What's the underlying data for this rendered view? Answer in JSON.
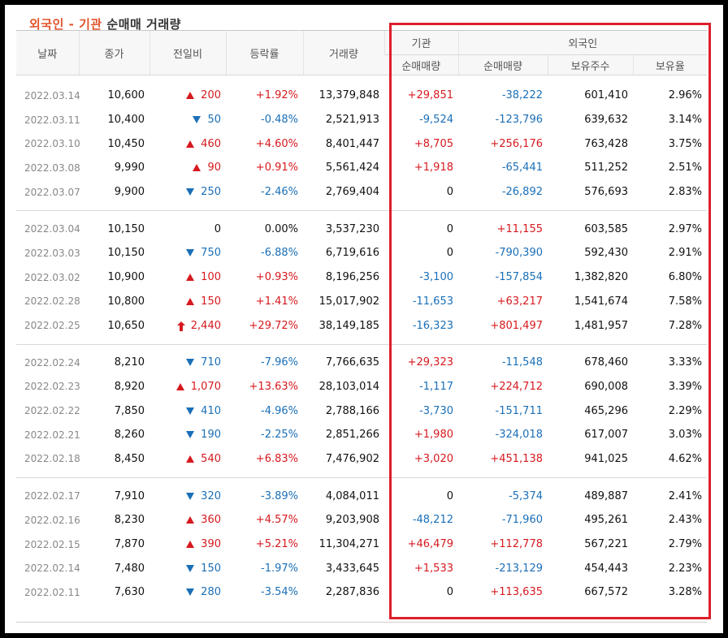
{
  "title": {
    "part1": "외국인 - 기관",
    "part2": "순매매 거래량"
  },
  "headers": {
    "date": "날짜",
    "close": "종가",
    "change": "전일비",
    "rate": "등락률",
    "volume": "거래량",
    "inst": "기관",
    "foreign": "외국인",
    "inst_net": "순매매량",
    "foreign_net": "순매매량",
    "foreign_hold": "보유주수",
    "foreign_ratio": "보유율"
  },
  "rows": [
    {
      "date": "2022.03.14",
      "close": "10,600",
      "dir": "up",
      "change": "200",
      "rate": "+1.92%",
      "volume": "13,379,848",
      "inst": "+29,851",
      "foreign": "-38,222",
      "hold": "601,410",
      "ratio": "2.96%"
    },
    {
      "date": "2022.03.11",
      "close": "10,400",
      "dir": "down",
      "change": "50",
      "rate": "-0.48%",
      "volume": "2,521,913",
      "inst": "-9,524",
      "foreign": "-123,796",
      "hold": "639,632",
      "ratio": "3.14%"
    },
    {
      "date": "2022.03.10",
      "close": "10,450",
      "dir": "up",
      "change": "460",
      "rate": "+4.60%",
      "volume": "8,401,447",
      "inst": "+8,705",
      "foreign": "+256,176",
      "hold": "763,428",
      "ratio": "3.75%"
    },
    {
      "date": "2022.03.08",
      "close": "9,990",
      "dir": "up",
      "change": "90",
      "rate": "+0.91%",
      "volume": "5,561,424",
      "inst": "+1,918",
      "foreign": "-65,441",
      "hold": "511,252",
      "ratio": "2.51%"
    },
    {
      "date": "2022.03.07",
      "close": "9,900",
      "dir": "down",
      "change": "250",
      "rate": "-2.46%",
      "volume": "2,769,404",
      "inst": "0",
      "foreign": "-26,892",
      "hold": "576,693",
      "ratio": "2.83%"
    },
    {
      "date": "2022.03.04",
      "close": "10,150",
      "dir": "flat",
      "change": "0",
      "rate": "0.00%",
      "volume": "3,537,230",
      "inst": "0",
      "foreign": "+11,155",
      "hold": "603,585",
      "ratio": "2.97%"
    },
    {
      "date": "2022.03.03",
      "close": "10,150",
      "dir": "down",
      "change": "750",
      "rate": "-6.88%",
      "volume": "6,719,616",
      "inst": "0",
      "foreign": "-790,390",
      "hold": "592,430",
      "ratio": "2.91%"
    },
    {
      "date": "2022.03.02",
      "close": "10,900",
      "dir": "up",
      "change": "100",
      "rate": "+0.93%",
      "volume": "8,196,256",
      "inst": "-3,100",
      "foreign": "-157,854",
      "hold": "1,382,820",
      "ratio": "6.80%"
    },
    {
      "date": "2022.02.28",
      "close": "10,800",
      "dir": "up",
      "change": "150",
      "rate": "+1.41%",
      "volume": "15,017,902",
      "inst": "-11,653",
      "foreign": "+63,217",
      "hold": "1,541,674",
      "ratio": "7.58%"
    },
    {
      "date": "2022.02.25",
      "close": "10,650",
      "dir": "limit",
      "change": "2,440",
      "rate": "+29.72%",
      "volume": "38,149,185",
      "inst": "-16,323",
      "foreign": "+801,497",
      "hold": "1,481,957",
      "ratio": "7.28%"
    },
    {
      "date": "2022.02.24",
      "close": "8,210",
      "dir": "down",
      "change": "710",
      "rate": "-7.96%",
      "volume": "7,766,635",
      "inst": "+29,323",
      "foreign": "-11,548",
      "hold": "678,460",
      "ratio": "3.33%"
    },
    {
      "date": "2022.02.23",
      "close": "8,920",
      "dir": "up",
      "change": "1,070",
      "rate": "+13.63%",
      "volume": "28,103,014",
      "inst": "-1,117",
      "foreign": "+224,712",
      "hold": "690,008",
      "ratio": "3.39%"
    },
    {
      "date": "2022.02.22",
      "close": "7,850",
      "dir": "down",
      "change": "410",
      "rate": "-4.96%",
      "volume": "2,788,166",
      "inst": "-3,730",
      "foreign": "-151,711",
      "hold": "465,296",
      "ratio": "2.29%"
    },
    {
      "date": "2022.02.21",
      "close": "8,260",
      "dir": "down",
      "change": "190",
      "rate": "-2.25%",
      "volume": "2,851,266",
      "inst": "+1,980",
      "foreign": "-324,018",
      "hold": "617,007",
      "ratio": "3.03%"
    },
    {
      "date": "2022.02.18",
      "close": "8,450",
      "dir": "up",
      "change": "540",
      "rate": "+6.83%",
      "volume": "7,476,902",
      "inst": "+3,020",
      "foreign": "+451,138",
      "hold": "941,025",
      "ratio": "4.62%"
    },
    {
      "date": "2022.02.17",
      "close": "7,910",
      "dir": "down",
      "change": "320",
      "rate": "-3.89%",
      "volume": "4,084,011",
      "inst": "0",
      "foreign": "-5,374",
      "hold": "489,887",
      "ratio": "2.41%"
    },
    {
      "date": "2022.02.16",
      "close": "8,230",
      "dir": "up",
      "change": "360",
      "rate": "+4.57%",
      "volume": "9,203,908",
      "inst": "-48,212",
      "foreign": "-71,960",
      "hold": "495,261",
      "ratio": "2.43%"
    },
    {
      "date": "2022.02.15",
      "close": "7,870",
      "dir": "up",
      "change": "390",
      "rate": "+5.21%",
      "volume": "11,304,271",
      "inst": "+46,479",
      "foreign": "+112,778",
      "hold": "567,221",
      "ratio": "2.79%"
    },
    {
      "date": "2022.02.14",
      "close": "7,480",
      "dir": "down",
      "change": "150",
      "rate": "-1.97%",
      "volume": "3,433,645",
      "inst": "+1,533",
      "foreign": "-213,129",
      "hold": "454,443",
      "ratio": "2.23%"
    },
    {
      "date": "2022.02.11",
      "close": "7,630",
      "dir": "down",
      "change": "280",
      "rate": "-3.54%",
      "volume": "2,287,836",
      "inst": "0",
      "foreign": "+113,635",
      "hold": "667,572",
      "ratio": "3.28%"
    }
  ],
  "colors": {
    "up": "#d6191e",
    "down": "#1a6fb7",
    "highlight": "#dd1f2b",
    "title_accent": "#e2532a"
  }
}
